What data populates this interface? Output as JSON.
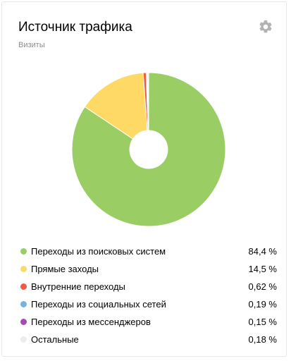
{
  "widget": {
    "title": "Источник трафика",
    "subtitle": "Визиты",
    "settings_icon": "gear-icon"
  },
  "chart_data": {
    "type": "pie",
    "style": "donut",
    "start": "top",
    "direction": "clockwise",
    "series": [
      {
        "label": "Переходы из поисковых систем",
        "value": 84.4,
        "display": "84,4 %",
        "color": "#9acd64"
      },
      {
        "label": "Прямые заходы",
        "value": 14.5,
        "display": "14,5 %",
        "color": "#ffd966"
      },
      {
        "label": "Внутренние переходы",
        "value": 0.62,
        "display": "0,62 %",
        "color": "#ef5a45"
      },
      {
        "label": "Переходы из социальных сетей",
        "value": 0.19,
        "display": "0,19 %",
        "color": "#74b3e6"
      },
      {
        "label": "Переходы из мессенджеров",
        "value": 0.15,
        "display": "0,15 %",
        "color": "#a64ab6"
      },
      {
        "label": "Остальные",
        "value": 0.18,
        "display": "0,18 %",
        "color": "#ececec"
      }
    ]
  }
}
